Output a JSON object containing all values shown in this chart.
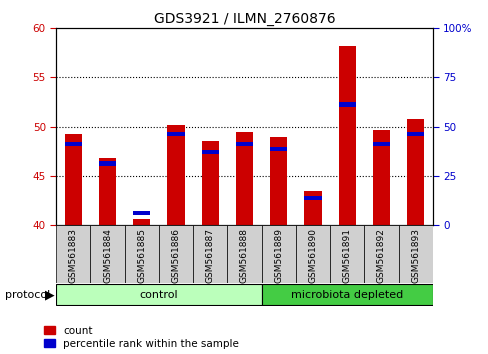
{
  "title": "GDS3921 / ILMN_2760876",
  "samples": [
    "GSM561883",
    "GSM561884",
    "GSM561885",
    "GSM561886",
    "GSM561887",
    "GSM561888",
    "GSM561889",
    "GSM561890",
    "GSM561891",
    "GSM561892",
    "GSM561893"
  ],
  "count_values": [
    49.2,
    46.8,
    40.6,
    50.2,
    48.5,
    49.4,
    48.9,
    43.4,
    58.2,
    49.6,
    50.8
  ],
  "percentile_values": [
    48.0,
    46.0,
    41.0,
    49.0,
    47.2,
    48.0,
    47.5,
    42.5,
    52.0,
    48.0,
    49.0
  ],
  "ylim": [
    40,
    60
  ],
  "yticks_left": [
    40,
    45,
    50,
    55,
    60
  ],
  "yticks_right": [
    0,
    25,
    50,
    75,
    100
  ],
  "bar_color": "#cc0000",
  "pct_color": "#0000cc",
  "control_color": "#bbffbb",
  "microbiota_color": "#44cc44",
  "n_control": 6,
  "n_microbiota": 5,
  "protocol_label": "protocol",
  "control_label": "control",
  "microbiota_label": "microbiota depleted",
  "legend_count": "count",
  "legend_pct": "percentile rank within the sample",
  "bar_width": 0.5,
  "baseline": 40,
  "grid_lines": [
    45,
    50,
    55
  ],
  "title_fontsize": 10,
  "tick_fontsize": 7.5,
  "label_fontsize": 8
}
